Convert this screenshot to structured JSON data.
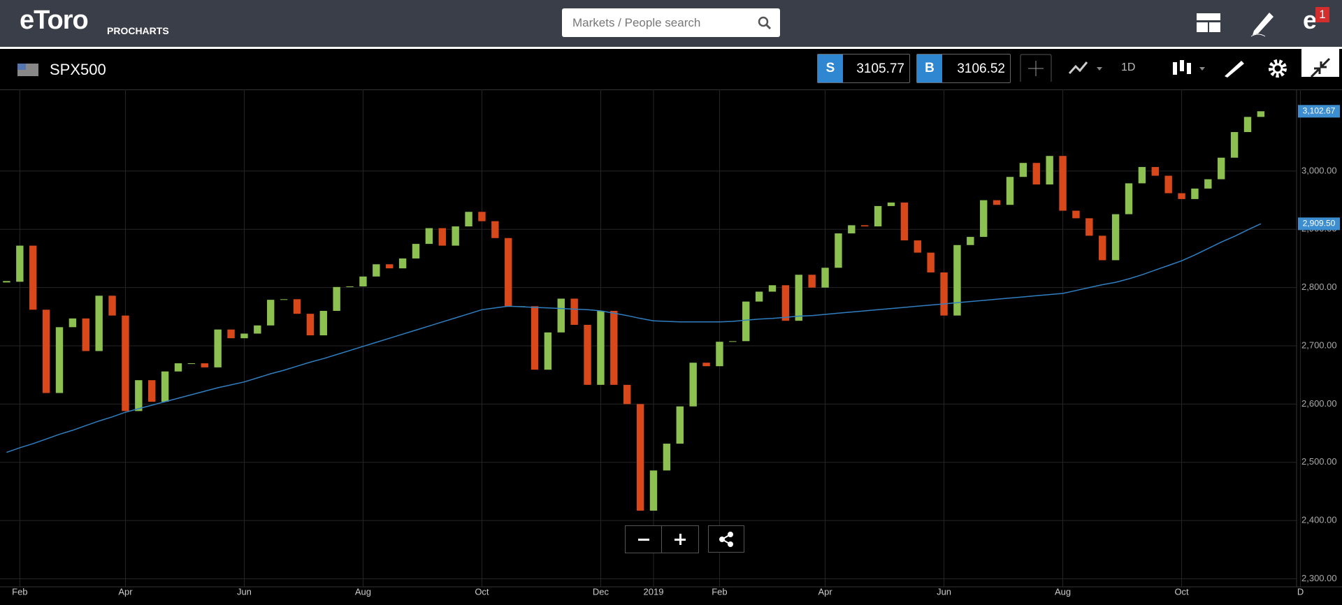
{
  "header": {
    "logo": "eToro",
    "product": "PROCHARTS",
    "search_placeholder": "Markets / People search",
    "notifications": 1
  },
  "toolbar": {
    "symbol": "SPX500",
    "sell_label": "S",
    "sell_price": 3105.77,
    "buy_label": "B",
    "buy_price": 3106.52,
    "interval": "1D"
  },
  "chart_data": {
    "type": "candlestick",
    "categories": [
      null,
      "Feb",
      null,
      null,
      null,
      null,
      null,
      null,
      null,
      "Apr",
      null,
      null,
      null,
      null,
      null,
      null,
      null,
      null,
      "Jun",
      null,
      null,
      null,
      null,
      null,
      null,
      null,
      null,
      "Aug",
      null,
      null,
      null,
      null,
      null,
      null,
      null,
      null,
      "Oct",
      null,
      null,
      null,
      null,
      null,
      null,
      null,
      null,
      "Dec",
      null,
      null,
      null,
      "2019",
      null,
      null,
      null,
      null,
      "Feb",
      null,
      null,
      null,
      null,
      null,
      null,
      null,
      "Apr",
      null,
      null,
      null,
      null,
      null,
      null,
      null,
      null,
      "Jun",
      null,
      null,
      null,
      null,
      null,
      null,
      null,
      null,
      "Aug",
      null,
      null,
      null,
      null,
      null,
      null,
      null,
      null,
      "Oct",
      null,
      null,
      null,
      null,
      null,
      null,
      null,
      null,
      "D"
    ],
    "series": [
      {
        "values": [
          2810,
          2872,
          2762,
          2619,
          2732,
          2747,
          2691,
          2786,
          2752,
          2588,
          2641,
          2604,
          2656,
          2670,
          2670,
          2663,
          2728,
          2713,
          2721,
          2735,
          2779,
          2780,
          2755,
          2718,
          2760,
          2801,
          2802,
          2819,
          2840,
          2833,
          2850,
          2875,
          2902,
          2872,
          2905,
          2930,
          2914,
          2885,
          2767,
          2768,
          2659,
          2723,
          2781,
          2736,
          2633,
          2760,
          2633,
          2600,
          2417,
          2486,
          2532,
          2596,
          2671,
          2665,
          2707,
          2708,
          2776,
          2793,
          2804,
          2743,
          2822,
          2800,
          2834,
          2893,
          2907,
          2905,
          2940,
          2946,
          2881,
          2860,
          2826,
          2752,
          2873,
          2887,
          2950,
          2942,
          2990,
          3014,
          2977,
          3026,
          2932,
          2919,
          2889,
          2847,
          2926,
          2979,
          3007,
          2992,
          2962,
          2952,
          2970,
          2986,
          3023,
          3067,
          3093,
          3102.67,
          null,
          null,
          null
        ],
        "up_color": "#8cc152",
        "down_color": "#d9481b"
      },
      {
        "values": [
          2517,
          2525,
          2532,
          2540,
          2548,
          2555,
          2563,
          2571,
          2578,
          2586,
          2592,
          2598,
          2604,
          2610,
          2616,
          2622,
          2628,
          2633,
          2638,
          2645,
          2652,
          2658,
          2665,
          2672,
          2678,
          2685,
          2692,
          2699,
          2706,
          2713,
          2720,
          2727,
          2734,
          2741,
          2748,
          2755,
          2762,
          2765,
          2768,
          2767,
          2766,
          2765,
          2764,
          2763,
          2762,
          2760,
          2756,
          2752,
          2747,
          2743,
          2742,
          2741,
          2741,
          2741,
          2741,
          2742,
          2744,
          2746,
          2747,
          2749,
          2751,
          2752,
          2754,
          2756,
          2758,
          2760,
          2762,
          2764,
          2766,
          2768,
          2770,
          2772,
          2774,
          2776,
          2778,
          2780,
          2782,
          2784,
          2786,
          2788,
          2790,
          2795,
          2800,
          2805,
          2809,
          2815,
          2822,
          2830,
          2838,
          2846,
          2856,
          2867,
          2878,
          2888,
          2899,
          2909.5,
          null,
          null,
          null
        ],
        "color": "#2f7fc1"
      }
    ],
    "price_badge": {
      "value": 3102.67,
      "label": "3,102.67"
    },
    "ma_badge": {
      "value": 2909.5,
      "label": "2,909.50"
    },
    "badge_color": "#3d8ed1",
    "ylim": [
      2291,
      3139
    ],
    "yticks": [
      {
        "value": 2300,
        "label": "2,300.00"
      },
      {
        "value": 2400,
        "label": "2,400.00"
      },
      {
        "value": 2500,
        "label": "2,500.00"
      },
      {
        "value": 2600,
        "label": "2,600.00"
      },
      {
        "value": 2700,
        "label": "2,700.00"
      },
      {
        "value": 2800,
        "label": "2,800.00"
      },
      {
        "value": 2900,
        "label": "2,900.00"
      },
      {
        "value": 3000,
        "label": "3,000.00"
      }
    ],
    "grid": true
  }
}
